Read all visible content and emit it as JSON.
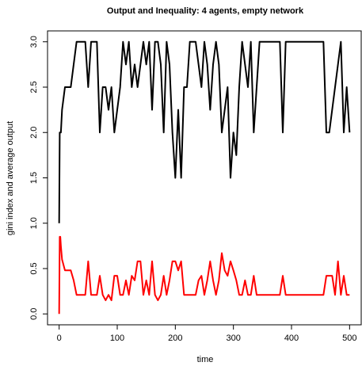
{
  "chart_data": {
    "type": "line",
    "title": "Output and Inequality: 4 agents, empty  network",
    "xlabel": "time",
    "ylabel": "gini index and average output",
    "x": [
      0,
      1,
      2,
      3,
      5,
      10,
      15,
      20,
      25,
      30,
      35,
      40,
      45,
      50,
      55,
      60,
      65,
      70,
      75,
      80,
      85,
      90,
      95,
      100,
      105,
      110,
      115,
      120,
      125,
      130,
      135,
      140,
      145,
      150,
      155,
      160,
      165,
      170,
      175,
      180,
      185,
      190,
      195,
      200,
      205,
      210,
      215,
      220,
      225,
      230,
      235,
      240,
      245,
      250,
      255,
      260,
      265,
      270,
      275,
      280,
      285,
      290,
      295,
      300,
      305,
      310,
      315,
      320,
      325,
      330,
      335,
      340,
      345,
      350,
      355,
      360,
      365,
      370,
      375,
      380,
      385,
      390,
      395,
      400,
      405,
      410,
      415,
      420,
      425,
      430,
      435,
      440,
      445,
      450,
      455,
      460,
      465,
      470,
      475,
      480,
      485,
      490,
      495,
      500
    ],
    "series": [
      {
        "color": "#000000",
        "values": [
          1.0,
          2.0,
          2.0,
          2.0,
          2.25,
          2.5,
          2.5,
          2.5,
          2.75,
          3,
          3,
          3,
          3,
          2.5,
          3,
          3,
          3,
          2,
          2.5,
          2.5,
          2.25,
          2.5,
          2,
          2.25,
          2.5,
          3,
          2.75,
          3,
          2.5,
          2.75,
          2.5,
          2.75,
          3,
          2.75,
          3,
          2.25,
          3,
          3,
          2.75,
          2,
          3,
          2.75,
          2,
          1.5,
          2.25,
          1.5,
          2.5,
          2.5,
          3,
          3,
          3,
          2.75,
          2.5,
          3,
          2.75,
          2.25,
          2.75,
          3,
          2.75,
          2,
          2.25,
          2.5,
          1.5,
          2,
          1.75,
          2.5,
          3,
          2.75,
          2.5,
          3,
          2,
          2.5,
          3,
          3,
          3,
          3,
          3,
          3,
          3,
          3,
          2,
          3,
          3,
          3,
          3,
          3,
          3,
          3,
          3,
          3,
          3,
          3,
          3,
          3,
          3,
          2,
          2,
          2.25,
          2.5,
          2.75,
          3,
          2,
          2.5,
          2
        ]
      },
      {
        "color": "#ff0000",
        "values": [
          0,
          0.85,
          0.85,
          0.75,
          0.6,
          0.48,
          0.48,
          0.48,
          0.37,
          0.21,
          0.21,
          0.21,
          0.21,
          0.58,
          0.21,
          0.21,
          0.21,
          0.42,
          0.21,
          0.15,
          0.21,
          0.15,
          0.42,
          0.42,
          0.21,
          0.21,
          0.37,
          0.21,
          0.42,
          0.37,
          0.58,
          0.58,
          0.21,
          0.37,
          0.21,
          0.58,
          0.21,
          0.15,
          0.21,
          0.42,
          0.21,
          0.37,
          0.58,
          0.58,
          0.48,
          0.58,
          0.21,
          0.21,
          0.21,
          0.21,
          0.21,
          0.37,
          0.42,
          0.21,
          0.37,
          0.58,
          0.37,
          0.21,
          0.37,
          0.67,
          0.48,
          0.42,
          0.58,
          0.48,
          0.37,
          0.21,
          0.21,
          0.37,
          0.21,
          0.21,
          0.42,
          0.21,
          0.21,
          0.21,
          0.21,
          0.21,
          0.21,
          0.21,
          0.21,
          0.21,
          0.42,
          0.21,
          0.21,
          0.21,
          0.21,
          0.21,
          0.21,
          0.21,
          0.21,
          0.21,
          0.21,
          0.21,
          0.21,
          0.21,
          0.21,
          0.42,
          0.42,
          0.42,
          0.21,
          0.58,
          0.21,
          0.42,
          0.21,
          0.21
        ]
      }
    ],
    "xlim": [
      -20,
      520
    ],
    "xticks": [
      0,
      100,
      200,
      300,
      400,
      500
    ],
    "ylim": [
      -0.12,
      3.12
    ],
    "yticks": [
      {
        "value": 0,
        "label": "0.0"
      },
      {
        "value": 0.5,
        "label": "0.5"
      },
      {
        "value": 1,
        "label": "1.0"
      },
      {
        "value": 1.5,
        "label": "1.5"
      },
      {
        "value": 2,
        "label": "2.0"
      },
      {
        "value": 2.5,
        "label": "2.5"
      },
      {
        "value": 3,
        "label": "3.0"
      }
    ]
  }
}
